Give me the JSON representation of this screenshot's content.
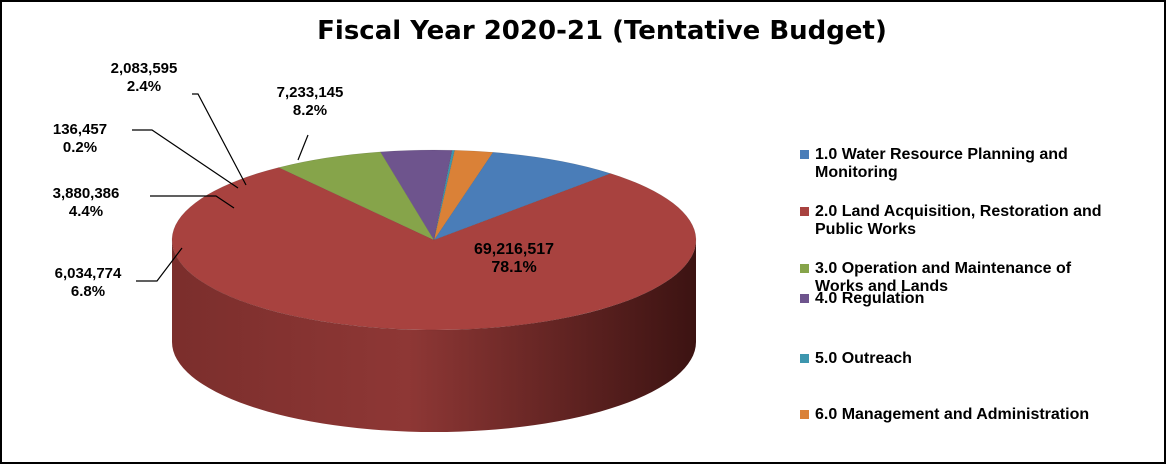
{
  "chart_data": {
    "type": "pie",
    "title": "Fiscal Year 2020-21 (Tentative Budget)",
    "legend_position": "right",
    "three_d": true,
    "slices": [
      {
        "label": "1.0 Water Resource Planning and Monitoring",
        "value_label": "7,233,145",
        "percent_label": "8.2%",
        "value": 7233145,
        "percent": 8.2,
        "color": "#4A7DB8"
      },
      {
        "label": "2.0 Land Acquisition, Restoration and Public Works",
        "value_label": "69,216,517",
        "percent_label": "78.1%",
        "value": 69216517,
        "percent": 78.1,
        "color": "#A8423F"
      },
      {
        "label": "3.0 Operation and Maintenance of Works and Lands",
        "value_label": "6,034,774",
        "percent_label": "6.8%",
        "value": 6034774,
        "percent": 6.8,
        "color": "#86A44A"
      },
      {
        "label": "4.0 Regulation",
        "value_label": "3,880,386",
        "percent_label": "4.4%",
        "value": 3880386,
        "percent": 4.4,
        "color": "#6E548D"
      },
      {
        "label": "5.0 Outreach",
        "value_label": "136,457",
        "percent_label": "0.2%",
        "value": 136457,
        "percent": 0.2,
        "color": "#3D96AE"
      },
      {
        "label": "6.0 Management and Administration",
        "value_label": "2,083,595",
        "percent_label": "2.4%",
        "value": 2083595,
        "percent": 2.4,
        "color": "#DA8137"
      }
    ]
  }
}
